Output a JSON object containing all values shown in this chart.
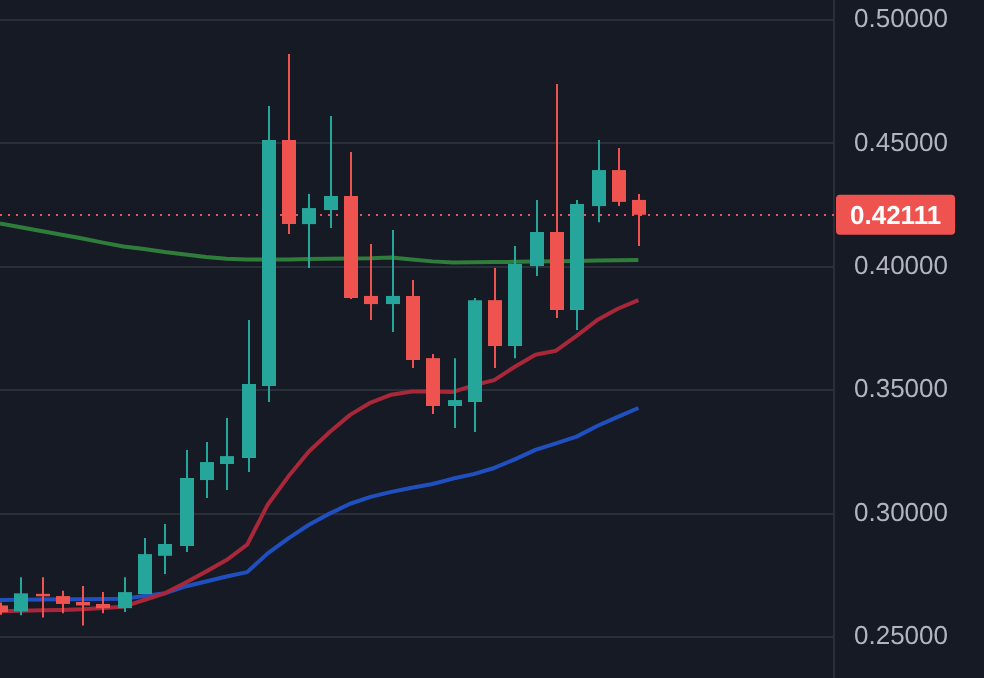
{
  "chart_data": {
    "type": "candlestick",
    "categories": [
      null,
      null,
      null,
      null,
      null,
      null,
      null,
      null,
      null,
      null,
      null,
      null,
      null,
      null,
      null,
      null,
      null,
      null,
      null,
      null,
      null,
      null,
      null,
      null,
      null,
      null,
      null,
      null,
      null,
      null,
      null,
      null
    ],
    "ohlc": [
      [
        0.2628,
        0.264,
        0.259,
        0.2601
      ],
      [
        0.2604,
        0.2742,
        0.2588,
        0.2677
      ],
      [
        0.2675,
        0.2742,
        0.2579,
        0.2665
      ],
      [
        0.2666,
        0.2688,
        0.2596,
        0.2634
      ],
      [
        0.2642,
        0.2707,
        0.2547,
        0.2628
      ],
      [
        0.2634,
        0.2682,
        0.2596,
        0.2617
      ],
      [
        0.2617,
        0.2742,
        0.2601,
        0.2682
      ],
      [
        0.2674,
        0.2901,
        0.2674,
        0.2836
      ],
      [
        0.2829,
        0.2958,
        0.2755,
        0.2877
      ],
      [
        0.2869,
        0.3258,
        0.2844,
        0.3144
      ],
      [
        0.3136,
        0.329,
        0.3063,
        0.3209
      ],
      [
        0.3201,
        0.3387,
        0.3096,
        0.3233
      ],
      [
        0.3225,
        0.3784,
        0.3169,
        0.3525
      ],
      [
        0.3517,
        0.4652,
        0.3452,
        0.4514
      ],
      [
        0.4514,
        0.4862,
        0.4133,
        0.4173
      ],
      [
        0.4173,
        0.4295,
        0.3995,
        0.4238
      ],
      [
        0.423,
        0.4611,
        0.4157,
        0.4287
      ],
      [
        0.4287,
        0.4465,
        0.387,
        0.3874
      ],
      [
        0.3882,
        0.4092,
        0.3784,
        0.3849
      ],
      [
        0.3849,
        0.4149,
        0.3736,
        0.3882
      ],
      [
        0.3882,
        0.3947,
        0.359,
        0.3622
      ],
      [
        0.363,
        0.3647,
        0.3404,
        0.3436
      ],
      [
        0.3436,
        0.363,
        0.3347,
        0.346
      ],
      [
        0.3452,
        0.3874,
        0.3331,
        0.3865
      ],
      [
        0.3865,
        0.3995,
        0.359,
        0.3679
      ],
      [
        0.3679,
        0.4084,
        0.363,
        0.4011
      ],
      [
        0.4003,
        0.4271,
        0.3963,
        0.4141
      ],
      [
        0.4141,
        0.4741,
        0.3793,
        0.3825
      ],
      [
        0.3825,
        0.4271,
        0.3744,
        0.4254
      ],
      [
        0.4246,
        0.4514,
        0.4181,
        0.4392
      ],
      [
        0.4392,
        0.4481,
        0.4246,
        0.4263
      ],
      [
        0.4271,
        0.4295,
        0.4084,
        0.4211
      ]
    ],
    "colors": [
      "#ef5350",
      "#26a69a",
      "#ef5350",
      "#ef5350",
      "#ef5350",
      "#ef5350",
      "#26a69a",
      "#26a69a",
      "#26a69a",
      "#26a69a",
      "#26a69a",
      "#26a69a",
      "#26a69a",
      "#26a69a",
      "#ef5350",
      "#26a69a",
      "#26a69a",
      "#ef5350",
      "#ef5350",
      "#26a69a",
      "#ef5350",
      "#ef5350",
      "#26a69a",
      "#26a69a",
      "#ef5350",
      "#26a69a",
      "#26a69a",
      "#ef5350",
      "#26a69a",
      "#26a69a",
      "#ef5350",
      "#ef5350"
    ],
    "series": [
      {
        "type": "line",
        "color": "#2f7d3a",
        "values": [
          0.4176,
          0.416,
          0.4145,
          0.413,
          0.4115,
          0.4098,
          0.4082,
          0.4072,
          0.406,
          0.405,
          0.404,
          0.4033,
          0.403,
          0.403,
          0.403,
          0.4032,
          0.4033,
          0.4034,
          0.4035,
          0.4038,
          0.403,
          0.4022,
          0.4017,
          0.4018,
          0.4019,
          0.402,
          0.4022,
          0.4023,
          0.4024,
          0.4026,
          0.4027,
          0.4028
        ]
      },
      {
        "type": "line",
        "color": "#a8283a",
        "values": [
          0.2604,
          0.2606,
          0.2608,
          0.261,
          0.2613,
          0.2618,
          0.2623,
          0.265,
          0.2677,
          0.272,
          0.2765,
          0.2812,
          0.2874,
          0.3036,
          0.315,
          0.3252,
          0.333,
          0.34,
          0.345,
          0.3482,
          0.3495,
          0.3495,
          0.3493,
          0.352,
          0.3541,
          0.3595,
          0.3644,
          0.366,
          0.372,
          0.3784,
          0.383,
          0.3865
        ]
      },
      {
        "type": "line",
        "color": "#2050c0",
        "values": [
          0.265,
          0.2651,
          0.2652,
          0.2653,
          0.2653,
          0.2654,
          0.2655,
          0.2666,
          0.2677,
          0.2705,
          0.2725,
          0.2745,
          0.2763,
          0.2839,
          0.29,
          0.2955,
          0.3,
          0.304,
          0.3068,
          0.3088,
          0.3105,
          0.312,
          0.3142,
          0.316,
          0.3185,
          0.322,
          0.3258,
          0.3285,
          0.3312,
          0.3355,
          0.3392,
          0.3428
        ]
      }
    ],
    "ylim": [
      0.2334,
      0.5081
    ],
    "yticks": [
      {
        "value": 0.25,
        "label": "0.25000"
      },
      {
        "value": 0.3,
        "label": "0.30000"
      },
      {
        "value": 0.35,
        "label": "0.35000"
      },
      {
        "value": 0.4,
        "label": "0.40000"
      },
      {
        "value": 0.45,
        "label": "0.45000"
      },
      {
        "value": 0.5,
        "label": "0.50000"
      }
    ],
    "tick_labels": "y",
    "grid": "y",
    "marker": "none",
    "line_style": "solid",
    "ref_lines": [
      {
        "axis": "y",
        "value": 0.42111,
        "label": "0.42111",
        "color": "#ef5350",
        "line_style": "dotted"
      }
    ]
  }
}
